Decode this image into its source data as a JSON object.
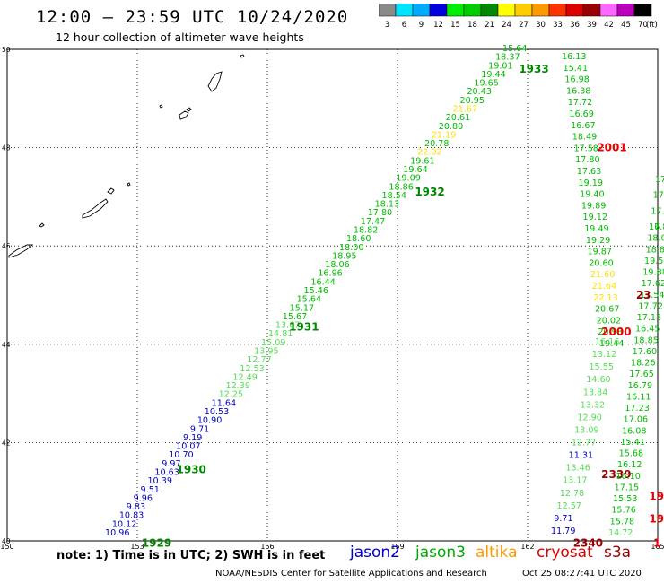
{
  "header": {
    "title": "12:00 – 23:59 UTC 10/24/2020",
    "subtitle": "12 hour collection of altimeter wave heights"
  },
  "colorbar": {
    "unit": "(ft)",
    "bins": [
      {
        "label": "3",
        "color": "#8a8a8a"
      },
      {
        "label": "6",
        "color": "#00e5ff"
      },
      {
        "label": "9",
        "color": "#00aaff"
      },
      {
        "label": "12",
        "color": "#0000dd"
      },
      {
        "label": "15",
        "color": "#00ee00"
      },
      {
        "label": "18",
        "color": "#00cc00"
      },
      {
        "label": "21",
        "color": "#008800"
      },
      {
        "label": "24",
        "color": "#ffff00"
      },
      {
        "label": "27",
        "color": "#ffcc00"
      },
      {
        "label": "30",
        "color": "#ff9900"
      },
      {
        "label": "33",
        "color": "#ff3300"
      },
      {
        "label": "36",
        "color": "#dd0000"
      },
      {
        "label": "39",
        "color": "#990000"
      },
      {
        "label": "42",
        "color": "#ff66ff"
      },
      {
        "label": "45",
        "color": "#bb00bb"
      },
      {
        "label": "70",
        "color": "#000000"
      }
    ]
  },
  "map": {
    "lon_ticks": [
      "150",
      "153",
      "156",
      "159",
      "162",
      "165"
    ],
    "lat_ticks": [
      "50",
      "48",
      "46",
      "44",
      "42",
      "40"
    ],
    "lon_range": [
      150,
      165
    ],
    "lat_range": [
      40,
      50
    ],
    "colors": {
      "dark_blue": "#0000bb",
      "light_green": "#55dd55",
      "green": "#00bb00",
      "dark_green": "#008800",
      "yellow": "#ffdd00",
      "red": "#ee0000",
      "dark_red": "#990000"
    },
    "tracks": [
      {
        "time_labels": [
          {
            "text": "1929",
            "lon": 153.1,
            "lat": 39.95,
            "color": "dark_green"
          },
          {
            "text": "1930",
            "lon": 153.9,
            "lat": 41.45,
            "color": "dark_green"
          },
          {
            "text": "1931",
            "lon": 156.5,
            "lat": 44.35,
            "color": "dark_green"
          },
          {
            "text": "1932",
            "lon": 159.4,
            "lat": 47.1,
            "color": "dark_green"
          },
          {
            "text": "1933",
            "lon": 161.8,
            "lat": 49.6,
            "color": "dark_green"
          }
        ],
        "values": [
          {
            "text": "10.96",
            "color": "dark_blue"
          },
          {
            "text": "10.12",
            "color": "dark_blue"
          },
          {
            "text": "10.83",
            "color": "dark_blue"
          },
          {
            "text": "9.83",
            "color": "dark_blue"
          },
          {
            "text": "9.96",
            "color": "dark_blue"
          },
          {
            "text": "9.51",
            "color": "dark_blue"
          },
          {
            "text": "10.39",
            "color": "dark_blue"
          },
          {
            "text": "10.63",
            "color": "dark_blue"
          },
          {
            "text": "9.97",
            "color": "dark_blue"
          },
          {
            "text": "10.70",
            "color": "dark_blue"
          },
          {
            "text": "10.07",
            "color": "dark_blue"
          },
          {
            "text": "9.19",
            "color": "dark_blue"
          },
          {
            "text": "9.71",
            "color": "dark_blue"
          },
          {
            "text": "10.90",
            "color": "dark_blue"
          },
          {
            "text": "10.53",
            "color": "dark_blue"
          },
          {
            "text": "11.64",
            "color": "dark_blue"
          },
          {
            "text": "12.25",
            "color": "light_green"
          },
          {
            "text": "12.39",
            "color": "light_green"
          },
          {
            "text": "12.49",
            "color": "light_green"
          },
          {
            "text": "12.53",
            "color": "light_green"
          },
          {
            "text": "12.77",
            "color": "light_green"
          },
          {
            "text": "13.95",
            "color": "light_green"
          },
          {
            "text": "15.09",
            "color": "light_green"
          },
          {
            "text": "14.81",
            "color": "light_green"
          },
          {
            "text": "13.67",
            "color": "light_green"
          },
          {
            "text": "15.67",
            "color": "green"
          },
          {
            "text": "15.17",
            "color": "green"
          },
          {
            "text": "15.64",
            "color": "green"
          },
          {
            "text": "15.46",
            "color": "green"
          },
          {
            "text": "16.44",
            "color": "green"
          },
          {
            "text": "16.96",
            "color": "green"
          },
          {
            "text": "18.06",
            "color": "green"
          },
          {
            "text": "18.95",
            "color": "green"
          },
          {
            "text": "18.00",
            "color": "green"
          },
          {
            "text": "18.60",
            "color": "green"
          },
          {
            "text": "18.82",
            "color": "green"
          },
          {
            "text": "17.47",
            "color": "green"
          },
          {
            "text": "17.80",
            "color": "green"
          },
          {
            "text": "18.13",
            "color": "green"
          },
          {
            "text": "18.54",
            "color": "green"
          },
          {
            "text": "18.86",
            "color": "green"
          },
          {
            "text": "19.09",
            "color": "green"
          },
          {
            "text": "19.64",
            "color": "green"
          },
          {
            "text": "19.61",
            "color": "green"
          },
          {
            "text": "22.02",
            "color": "yellow"
          },
          {
            "text": "20.78",
            "color": "green"
          },
          {
            "text": "21.19",
            "color": "yellow"
          },
          {
            "text": "20.80",
            "color": "green"
          },
          {
            "text": "20.61",
            "color": "green"
          },
          {
            "text": "21.67",
            "color": "yellow"
          },
          {
            "text": "20.95",
            "color": "green"
          },
          {
            "text": "20.43",
            "color": "green"
          },
          {
            "text": "19.65",
            "color": "green"
          },
          {
            "text": "19.44",
            "color": "green"
          },
          {
            "text": "19.01",
            "color": "green"
          },
          {
            "text": "18.37",
            "color": "green"
          },
          {
            "text": "15.64",
            "color": "green"
          }
        ]
      },
      {
        "time_labels": [
          {
            "text": "2001",
            "lon": 163.6,
            "lat": 48.0,
            "color": "red"
          },
          {
            "text": "2000",
            "lon": 163.7,
            "lat": 44.25,
            "color": "red"
          }
        ],
        "values": [
          {
            "text": "16.13",
            "color": "green"
          },
          {
            "text": "15.41",
            "color": "green"
          },
          {
            "text": "16.98",
            "color": "green"
          },
          {
            "text": "16.38",
            "color": "green"
          },
          {
            "text": "17.72",
            "color": "green"
          },
          {
            "text": "16.69",
            "color": "green"
          },
          {
            "text": "16.67",
            "color": "green"
          },
          {
            "text": "18.49",
            "color": "green"
          },
          {
            "text": "17.58",
            "color": "green"
          },
          {
            "text": "17.80",
            "color": "green"
          },
          {
            "text": "17.63",
            "color": "green"
          },
          {
            "text": "19.19",
            "color": "green"
          },
          {
            "text": "19.40",
            "color": "green"
          },
          {
            "text": "19.89",
            "color": "green"
          },
          {
            "text": "19.12",
            "color": "green"
          },
          {
            "text": "19.49",
            "color": "green"
          },
          {
            "text": "19.29",
            "color": "green"
          },
          {
            "text": "19.87",
            "color": "green"
          },
          {
            "text": "20.60",
            "color": "green"
          },
          {
            "text": "21.60",
            "color": "yellow"
          },
          {
            "text": "21.64",
            "color": "yellow"
          },
          {
            "text": "22.13",
            "color": "yellow"
          },
          {
            "text": "20.67",
            "color": "green"
          },
          {
            "text": "20.02",
            "color": "green"
          },
          {
            "text": "20.98",
            "color": "green"
          },
          {
            "text": "19.44",
            "color": "green"
          }
        ]
      },
      {
        "time_labels": [
          {
            "text": "2339",
            "lon": 163.7,
            "lat": 41.35,
            "color": "dark_red"
          },
          {
            "text": "2340",
            "lon": 163.05,
            "lat": 39.95,
            "color": "dark_red"
          }
        ],
        "values": [
          {
            "text": "11.79",
            "color": "dark_blue"
          },
          {
            "text": "9.71",
            "color": "dark_blue"
          },
          {
            "text": "12.57",
            "color": "light_green"
          },
          {
            "text": "12.78",
            "color": "light_green"
          },
          {
            "text": "13.17",
            "color": "light_green"
          },
          {
            "text": "13.46",
            "color": "light_green"
          },
          {
            "text": "11.31",
            "color": "dark_blue"
          },
          {
            "text": "12.77",
            "color": "light_green"
          },
          {
            "text": "13.09",
            "color": "light_green"
          },
          {
            "text": "12.90",
            "color": "light_green"
          },
          {
            "text": "13.32",
            "color": "light_green"
          },
          {
            "text": "13.84",
            "color": "light_green"
          },
          {
            "text": "14.60",
            "color": "light_green"
          },
          {
            "text": "15.55",
            "color": "light_green"
          },
          {
            "text": "13.12",
            "color": "light_green"
          },
          {
            "text": "16.16",
            "color": "light_green"
          }
        ]
      },
      {
        "values": [
          {
            "text": "14.72",
            "color": "light_green"
          },
          {
            "text": "15.78",
            "color": "green"
          },
          {
            "text": "15.76",
            "color": "green"
          },
          {
            "text": "15.53",
            "color": "green"
          },
          {
            "text": "17.15",
            "color": "green"
          },
          {
            "text": "16.10",
            "color": "green"
          },
          {
            "text": "16.12",
            "color": "green"
          },
          {
            "text": "15.68",
            "color": "green"
          },
          {
            "text": "15.41",
            "color": "green"
          },
          {
            "text": "16.08",
            "color": "green"
          },
          {
            "text": "17.06",
            "color": "green"
          },
          {
            "text": "17.23",
            "color": "green"
          },
          {
            "text": "16.11",
            "color": "green"
          },
          {
            "text": "16.79",
            "color": "green"
          },
          {
            "text": "17.65",
            "color": "green"
          },
          {
            "text": "18.26",
            "color": "green"
          },
          {
            "text": "17.60",
            "color": "green"
          },
          {
            "text": "18.85",
            "color": "green"
          },
          {
            "text": "16.45",
            "color": "green"
          },
          {
            "text": "17.13",
            "color": "green"
          },
          {
            "text": "17.72",
            "color": "green"
          },
          {
            "text": "17.54",
            "color": "green"
          },
          {
            "text": "17.62",
            "color": "green"
          },
          {
            "text": "19.88",
            "color": "green"
          },
          {
            "text": "19.54",
            "color": "green"
          },
          {
            "text": "18.84",
            "color": "green"
          },
          {
            "text": "18.04",
            "color": "green"
          },
          {
            "text": "16.88",
            "color": "green"
          }
        ]
      },
      {
        "time_labels": [
          {
            "text": "23",
            "lon": 164.5,
            "lat": 45.0,
            "color": "dark_red"
          },
          {
            "text": "19",
            "lon": 164.8,
            "lat": 40.9,
            "color": "red"
          },
          {
            "text": "19",
            "lon": 164.8,
            "lat": 40.45,
            "color": "red"
          },
          {
            "text": "1",
            "lon": 164.9,
            "lat": 39.95,
            "color": "red"
          }
        ],
        "values": [
          {
            "text": "17.",
            "color": "green"
          },
          {
            "text": "17.4",
            "color": "green"
          },
          {
            "text": "17.7",
            "color": "green"
          },
          {
            "text": "17",
            "color": "green"
          }
        ]
      }
    ]
  },
  "footer": {
    "note": "note:  1) Time is in UTC; 2) SWH is in feet",
    "legend": [
      {
        "text": "jason2",
        "color": "#0000cc"
      },
      {
        "text": "jason3",
        "color": "#00aa00"
      },
      {
        "text": "altika",
        "color": "#ff9900"
      },
      {
        "text": "cryosat",
        "color": "#dd0000"
      },
      {
        "text": "s3a",
        "color": "#990000"
      }
    ],
    "credit": "NOAA/NESDIS Center for Satellite Applications and Research",
    "timestamp": "Oct 25 08:27:41 UTC 2020"
  }
}
